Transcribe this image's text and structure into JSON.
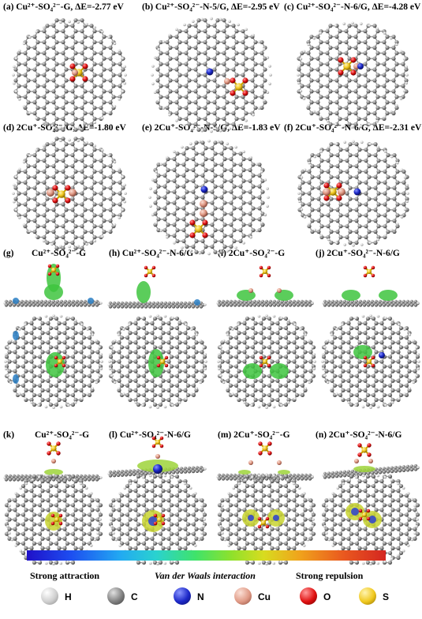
{
  "labels": {
    "a": "(a) Cu²⁺-SO₄²⁻-G, ΔE=-2.77 eV",
    "b": "(b) Cu²⁺-SO₄²⁻-N-5/G, ΔE=-2.95 eV",
    "c": "(c) Cu²⁺-SO₄²⁻-N-6/G, ΔE=-4.28 eV",
    "d": "(d) 2Cu⁺-SO₄²⁻-G, ΔE=-1.80 eV",
    "e": "(e) 2Cu⁺-SO₄²⁻-N-5/G, ΔE=-1.83 eV",
    "f": "(f) 2Cu⁺-SO₄²⁻-N-6/G, ΔE=-2.31 eV",
    "g": "(g)",
    "g_t": "Cu²⁺-SO₄²⁻-G",
    "h": "(h) Cu²⁺-SO₄²⁻-N-6/G",
    "i": "(i)  2Cu⁺-SO₄²⁻-G",
    "j": "(j)  2Cu⁺-SO₄²⁻-N-6/G",
    "k": "(k)",
    "k_t": "Cu²⁺-SO₄²⁻-G",
    "l": "(l)  Cu²⁺-SO₄²⁻-N-6/G",
    "m": "(m)  2Cu⁺-SO₄²⁻-G",
    "n": "(n)  2Cu⁺-SO₄²⁻-N-6/G"
  },
  "colorbar": {
    "left": "Strong attraction",
    "middle": "Van der Waals interaction",
    "right": "Strong repulsion"
  },
  "legend": [
    {
      "symbol": "H",
      "color": "#ececec"
    },
    {
      "symbol": "C",
      "color": "#808080"
    },
    {
      "symbol": "N",
      "color": "#1c28c8"
    },
    {
      "symbol": "Cu",
      "color": "#e09a86"
    },
    {
      "symbol": "O",
      "color": "#e01010"
    },
    {
      "symbol": "S",
      "color": "#f0c81e"
    }
  ],
  "colors": {
    "carbon": "#8a8a8a",
    "hydrogen": "#e8e8e8",
    "nitrogen": "#1c28c8",
    "copper": "#e09a86",
    "oxygen": "#e01010",
    "sulfur": "#f0c81e",
    "iso_green": "#3ec43e",
    "iso_blue": "#2a7fc4"
  }
}
